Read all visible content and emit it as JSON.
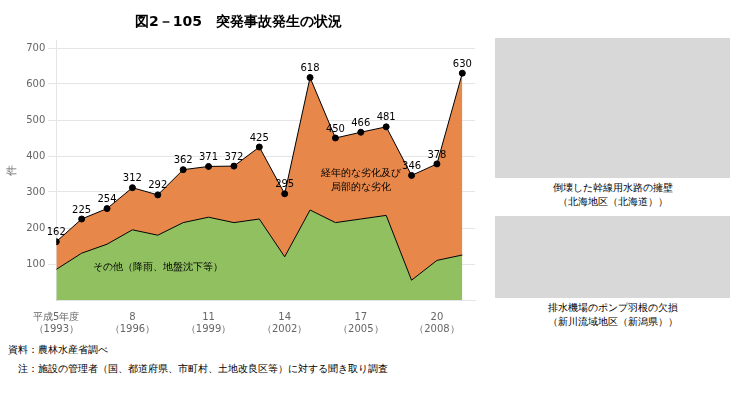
{
  "chart_data": {
    "type": "area",
    "title": "図2－105　突発事故発生の状況",
    "x": [
      1993,
      1994,
      1995,
      1996,
      1997,
      1998,
      1999,
      2000,
      2001,
      2002,
      2003,
      2004,
      2005,
      2006,
      2007,
      2008,
      2009
    ],
    "series": [
      {
        "name": "その他（降雨、地盤沈下等）",
        "color": "#90C060",
        "values": [
          85,
          130,
          155,
          195,
          180,
          215,
          230,
          215,
          225,
          120,
          250,
          215,
          225,
          235,
          55,
          110,
          125
        ]
      },
      {
        "name": "経年的な劣化及び\n局部的な劣化",
        "color": "#E8874A",
        "marker": "circle",
        "data_labels": true,
        "values": [
          162,
          225,
          254,
          312,
          292,
          362,
          371,
          372,
          425,
          295,
          618,
          450,
          466,
          481,
          346,
          378,
          630
        ]
      }
    ],
    "xlim": [
      1993,
      2009.5
    ],
    "xticks": [
      {
        "value": 1993,
        "label": "平成5年度\n（1993）"
      },
      {
        "value": 1996,
        "label": "8\n（1996）"
      },
      {
        "value": 1999,
        "label": "11\n（1999）"
      },
      {
        "value": 2002,
        "label": "14\n（2002）"
      },
      {
        "value": 2005,
        "label": "17\n（2005）"
      },
      {
        "value": 2008,
        "label": "20\n（2008）"
      }
    ],
    "ylim": [
      0,
      720
    ],
    "yticks": [
      100,
      200,
      300,
      400,
      500,
      600,
      700
    ],
    "ylabel": "件",
    "grid": true,
    "annotations": [
      "資料：農林水産省調べ",
      "　注：施設の管理者（国、都道府県、市町村、土地改良区等）に対する聞き取り調査",
      "倒壊した幹線用水路の擁壁\n（北海地区（北海道））",
      "排水機場のポンプ羽根の欠損\n（新川流域地区（新潟県））"
    ]
  }
}
